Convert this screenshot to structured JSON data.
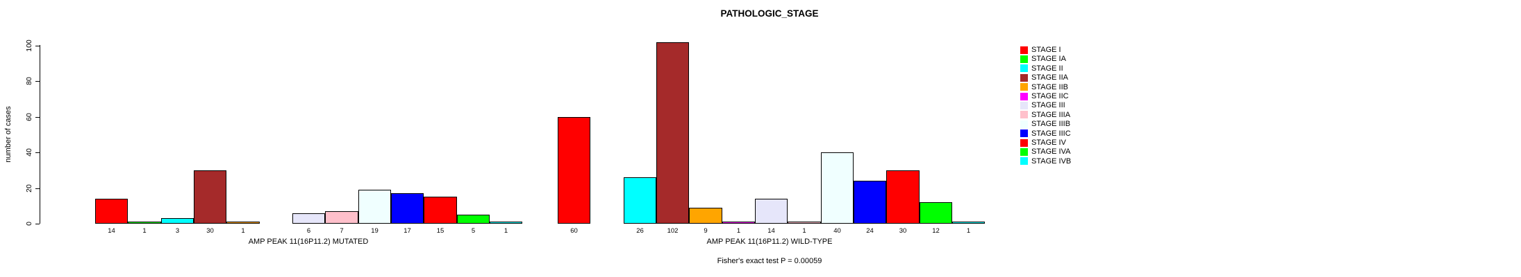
{
  "chart_data": {
    "type": "bar",
    "title": "PATHOLOGIC_STAGE",
    "ylabel": "number of cases",
    "xlabel": "",
    "ylim": [
      0,
      100
    ],
    "yticks": [
      0,
      20,
      40,
      60,
      80,
      100
    ],
    "grid": false,
    "legend_position": "right",
    "bar_value_labels_shown": true,
    "annotation": "Fisher's exact test P = 0.00059",
    "categories": [
      "STAGE I",
      "STAGE IA",
      "STAGE II",
      "STAGE IIA",
      "STAGE IIB",
      "STAGE IIC",
      "STAGE III",
      "STAGE IIIA",
      "STAGE IIIB",
      "STAGE IIIC",
      "STAGE IV",
      "STAGE IVA",
      "STAGE IVB"
    ],
    "colors": [
      "#FF0000",
      "#00FF00",
      "#00FFFF",
      "#A52A2A",
      "#FFA500",
      "#FF00FF",
      "#E6E6FA",
      "#FFC0CB",
      "#F0FFFF",
      "#0000FF",
      "#FF0000",
      "#00FF00",
      "#00FFFF"
    ],
    "series": [
      {
        "name": "AMP PEAK 11(16P11.2) MUTATED",
        "values": [
          14,
          1,
          3,
          30,
          1,
          0,
          6,
          7,
          19,
          17,
          15,
          5,
          1
        ]
      },
      {
        "name": "AMP PEAK 11(16P11.2) WILD-TYPE",
        "values": [
          60,
          0,
          26,
          102,
          9,
          1,
          14,
          1,
          40,
          24,
          30,
          12,
          1
        ]
      }
    ]
  }
}
